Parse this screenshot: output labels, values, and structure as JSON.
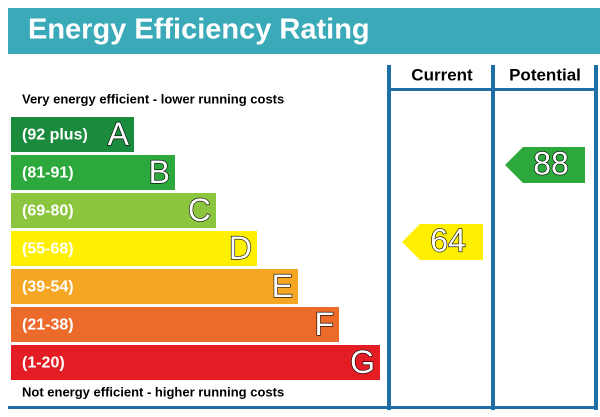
{
  "title": "Energy Efficiency Rating",
  "columns": [
    "Current",
    "Potential"
  ],
  "top_note": "Very energy efficient - lower running costs",
  "bottom_note": "Not energy efficient - higher running costs",
  "bands": [
    {
      "range": "(92 plus)",
      "letter": "A",
      "color": "#1a8a3c"
    },
    {
      "range": "(81-91)",
      "letter": "B",
      "color": "#2ca83c"
    },
    {
      "range": "(69-80)",
      "letter": "C",
      "color": "#8cc63e"
    },
    {
      "range": "(55-68)",
      "letter": "D",
      "color": "#ffef00"
    },
    {
      "range": "(39-54)",
      "letter": "E",
      "color": "#f5a623"
    },
    {
      "range": "(21-38)",
      "letter": "F",
      "color": "#ec6b2b"
    },
    {
      "range": "(1-20)",
      "letter": "G",
      "color": "#e31d23"
    }
  ],
  "current": {
    "value": 64,
    "color": "#ffef00"
  },
  "potential": {
    "value": 88,
    "color": "#2ca83c"
  }
}
